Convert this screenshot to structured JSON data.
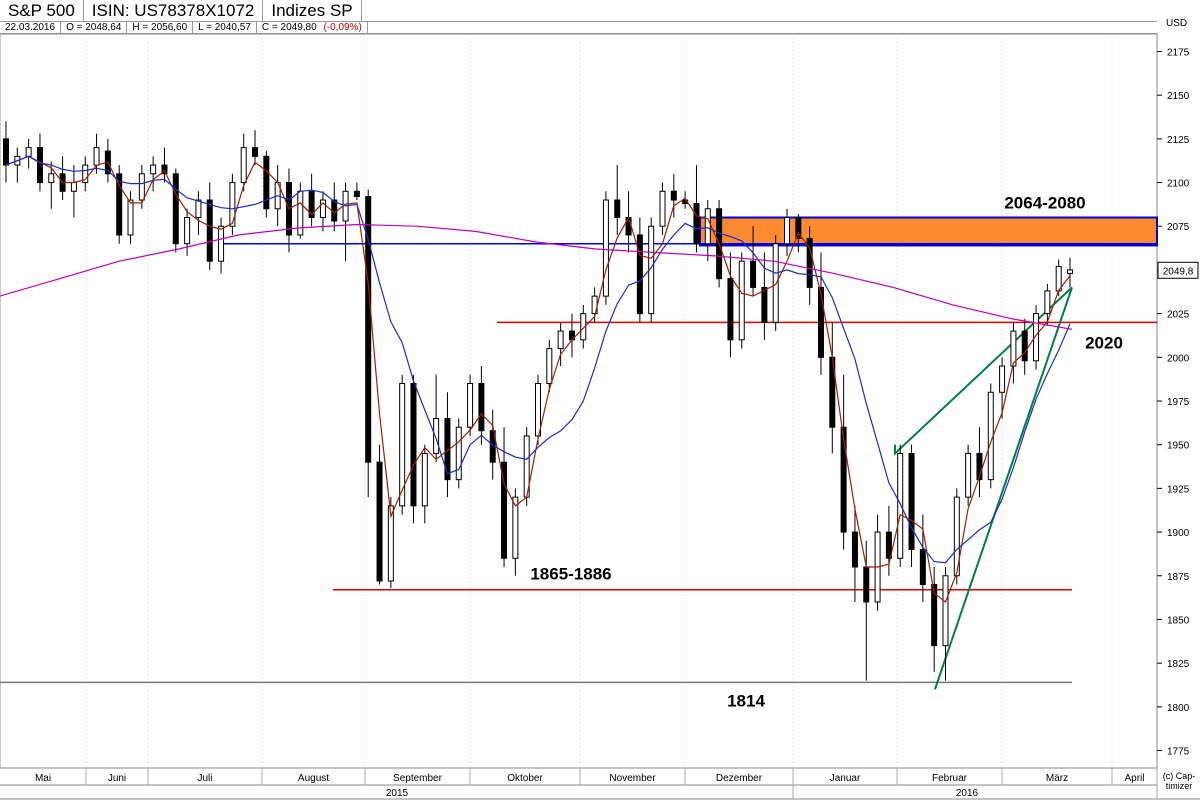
{
  "header": {
    "name": "S&P 500",
    "isin": "ISIN: US78378X1072",
    "exchange": "Indizes SP",
    "date": "22.03.2016",
    "open": "O = 2048,64",
    "high": "H = 2056,60",
    "low": "L = 2040,57",
    "close": "C = 2049,80",
    "change": "(-0,09%)"
  },
  "currency": "USD",
  "credit": "(c) Cap-timizer",
  "colors": {
    "red_level": "#e00000",
    "blue_level": "#0000dd",
    "zone_fill": "#ff8a30",
    "trend_green": "#008040",
    "ma_short": "#a02000",
    "ma_mid": "#1a2ecc",
    "ma_long": "#c000c0"
  },
  "chart_data": {
    "type": "candlestick",
    "ylim": [
      1765,
      2185
    ],
    "yticks": [
      2175,
      2150,
      2125,
      2100,
      2075,
      2050,
      2025,
      2000,
      1975,
      1950,
      1925,
      1900,
      1875,
      1850,
      1825,
      1800,
      1775
    ],
    "months": [
      "Mai",
      "Juni",
      "Juli",
      "August",
      "September",
      "Oktober",
      "November",
      "Dezember",
      "Januar",
      "Februar",
      "März",
      "April"
    ],
    "years": [
      "2015",
      "2016"
    ],
    "last_price_label": "2049,8",
    "last_price": 2049.8,
    "annotations": [
      {
        "label": "2064-2080",
        "kind": "zone",
        "from": 2064,
        "to": 2080
      },
      {
        "label": "2020",
        "kind": "support",
        "value": 2020
      },
      {
        "label": "1865-1886",
        "kind": "support",
        "value": 1867
      },
      {
        "label": "1814",
        "kind": "support",
        "value": 1814
      }
    ],
    "blue_level": 2065,
    "series_points": [
      [
        2125,
        2135,
        2100,
        2110
      ],
      [
        2110,
        2120,
        2100,
        2115
      ],
      [
        2115,
        2125,
        2108,
        2120
      ],
      [
        2120,
        2128,
        2095,
        2100
      ],
      [
        2100,
        2112,
        2085,
        2105
      ],
      [
        2105,
        2115,
        2090,
        2095
      ],
      [
        2095,
        2110,
        2080,
        2100
      ],
      [
        2100,
        2115,
        2095,
        2110
      ],
      [
        2110,
        2128,
        2105,
        2120
      ],
      [
        2118,
        2125,
        2100,
        2105
      ],
      [
        2105,
        2110,
        2065,
        2070
      ],
      [
        2070,
        2095,
        2065,
        2090
      ],
      [
        2090,
        2110,
        2085,
        2105
      ],
      [
        2105,
        2115,
        2095,
        2110
      ],
      [
        2110,
        2120,
        2100,
        2105
      ],
      [
        2105,
        2108,
        2060,
        2065
      ],
      [
        2065,
        2085,
        2058,
        2080
      ],
      [
        2080,
        2095,
        2070,
        2090
      ],
      [
        2090,
        2100,
        2050,
        2055
      ],
      [
        2055,
        2080,
        2048,
        2075
      ],
      [
        2075,
        2105,
        2070,
        2100
      ],
      [
        2100,
        2128,
        2095,
        2120
      ],
      [
        2120,
        2130,
        2110,
        2115
      ],
      [
        2115,
        2118,
        2080,
        2085
      ],
      [
        2085,
        2110,
        2075,
        2100
      ],
      [
        2100,
        2108,
        2060,
        2070
      ],
      [
        2070,
        2100,
        2068,
        2095
      ],
      [
        2095,
        2105,
        2075,
        2080
      ],
      [
        2080,
        2095,
        2072,
        2090
      ],
      [
        2090,
        2100,
        2072,
        2078
      ],
      [
        2078,
        2100,
        2055,
        2095
      ],
      [
        2095,
        2100,
        2090,
        2092
      ],
      [
        2092,
        2096,
        1920,
        1940
      ],
      [
        1940,
        1950,
        1870,
        1872
      ],
      [
        1872,
        1920,
        1868,
        1915
      ],
      [
        1915,
        1990,
        1910,
        1985
      ],
      [
        1985,
        1990,
        1905,
        1915
      ],
      [
        1915,
        1950,
        1905,
        1945
      ],
      [
        1945,
        1990,
        1940,
        1965
      ],
      [
        1965,
        1980,
        1920,
        1930
      ],
      [
        1930,
        1965,
        1925,
        1960
      ],
      [
        1960,
        1990,
        1955,
        1985
      ],
      [
        1985,
        1995,
        1950,
        1958
      ],
      [
        1958,
        1970,
        1930,
        1940
      ],
      [
        1940,
        1960,
        1880,
        1885
      ],
      [
        1885,
        1925,
        1875,
        1920
      ],
      [
        1920,
        1960,
        1915,
        1955
      ],
      [
        1955,
        1990,
        1950,
        1985
      ],
      [
        1985,
        2010,
        1980,
        2005
      ],
      [
        2005,
        2020,
        1995,
        2015
      ],
      [
        2015,
        2025,
        2000,
        2010
      ],
      [
        2010,
        2030,
        2005,
        2025
      ],
      [
        2025,
        2040,
        2020,
        2035
      ],
      [
        2035,
        2095,
        2030,
        2090
      ],
      [
        2090,
        2110,
        2070,
        2080
      ],
      [
        2080,
        2095,
        2060,
        2070
      ],
      [
        2070,
        2080,
        2020,
        2025
      ],
      [
        2025,
        2080,
        2020,
        2075
      ],
      [
        2075,
        2100,
        2070,
        2095
      ],
      [
        2095,
        2105,
        2080,
        2090
      ],
      [
        2090,
        2095,
        2085,
        2088
      ],
      [
        2088,
        2110,
        2060,
        2065
      ],
      [
        2065,
        2090,
        2055,
        2085
      ],
      [
        2085,
        2090,
        2040,
        2045
      ],
      [
        2045,
        2060,
        2000,
        2010
      ],
      [
        2010,
        2060,
        2005,
        2055
      ],
      [
        2055,
        2075,
        2035,
        2040
      ],
      [
        2040,
        2060,
        2010,
        2020
      ],
      [
        2020,
        2070,
        2015,
        2065
      ],
      [
        2065,
        2085,
        2058,
        2080
      ],
      [
        2080,
        2082,
        2060,
        2068
      ],
      [
        2068,
        2075,
        2030,
        2040
      ],
      [
        2040,
        2060,
        1990,
        2000
      ],
      [
        2000,
        2020,
        1945,
        1960
      ],
      [
        1960,
        1990,
        1890,
        1900
      ],
      [
        1900,
        1915,
        1860,
        1880
      ],
      [
        1880,
        1895,
        1815,
        1860
      ],
      [
        1860,
        1910,
        1855,
        1900
      ],
      [
        1900,
        1915,
        1875,
        1885
      ],
      [
        1885,
        1950,
        1880,
        1945
      ],
      [
        1945,
        1950,
        1880,
        1890
      ],
      [
        1890,
        1910,
        1860,
        1870
      ],
      [
        1870,
        1880,
        1820,
        1835
      ],
      [
        1835,
        1880,
        1815,
        1875
      ],
      [
        1875,
        1925,
        1870,
        1920
      ],
      [
        1920,
        1950,
        1915,
        1945
      ],
      [
        1945,
        1960,
        1920,
        1930
      ],
      [
        1930,
        1985,
        1925,
        1980
      ],
      [
        1980,
        2000,
        1965,
        1995
      ],
      [
        1995,
        2020,
        1985,
        2015
      ],
      [
        2015,
        2022,
        1990,
        1998
      ],
      [
        1998,
        2030,
        1993,
        2025
      ],
      [
        2025,
        2042,
        2018,
        2038
      ],
      [
        2038,
        2056,
        2035,
        2052
      ],
      [
        2048,
        2057,
        2040,
        2050
      ]
    ]
  }
}
